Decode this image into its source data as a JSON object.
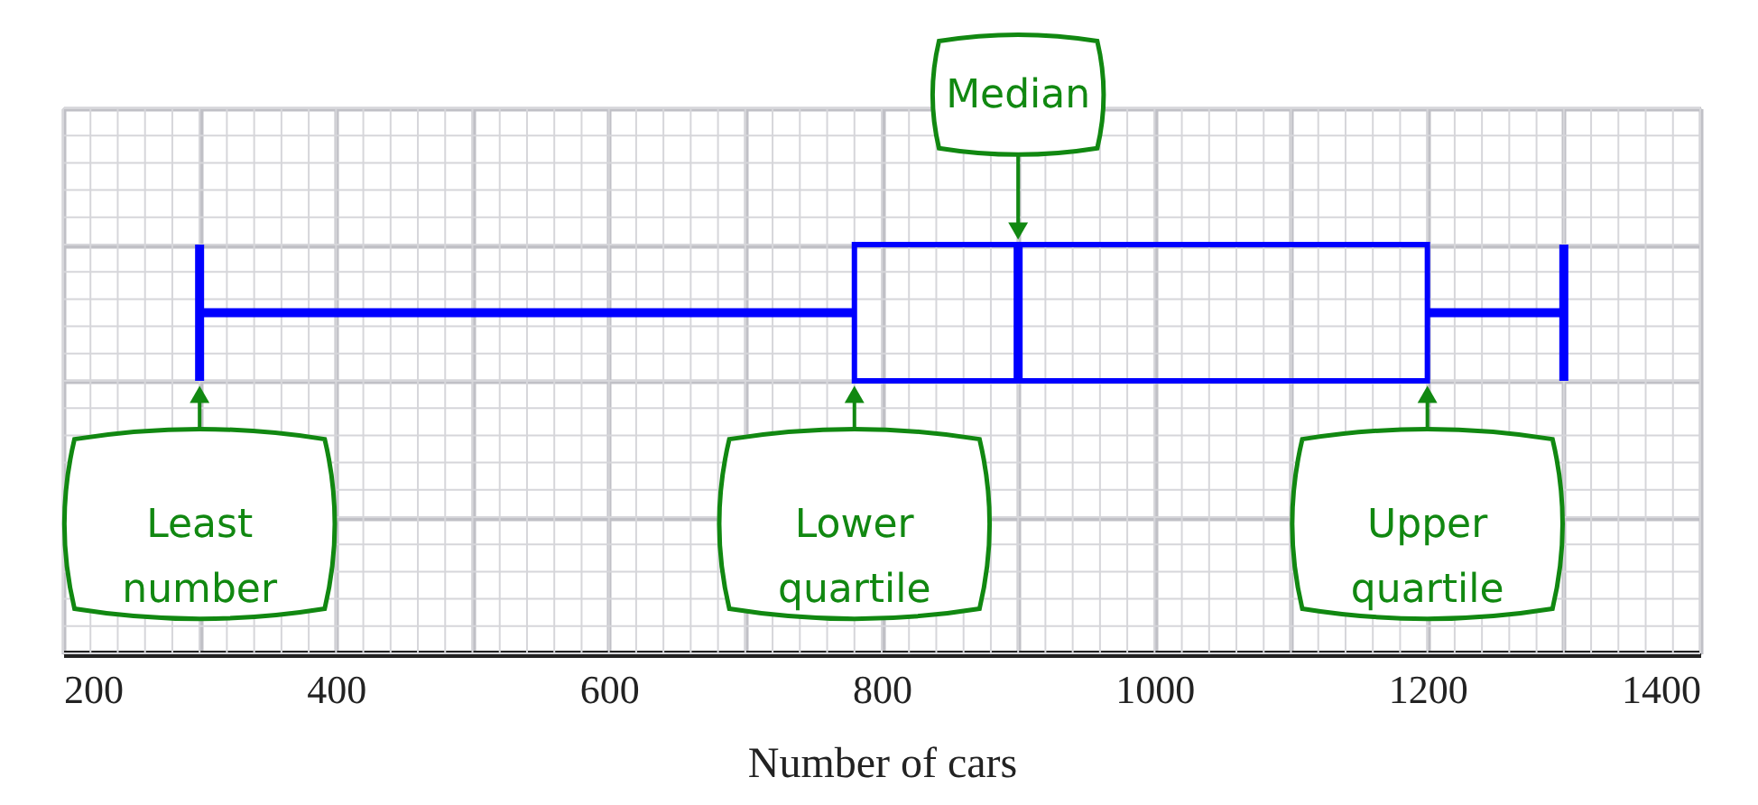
{
  "chart_data": {
    "type": "box",
    "xlabel": "Number of cars",
    "categories": [
      null
    ],
    "series": [
      {
        "color": "#0000ff",
        "boxes": [
          {
            "low": 300,
            "q1": 780,
            "median": 900,
            "q3": 1200,
            "high": 1300
          }
        ]
      }
    ],
    "orientation": "horizontal",
    "xlim": [
      200,
      1400
    ],
    "xticks": [
      200,
      {
        "value": 300,
        "label": null
      },
      400,
      {
        "value": 500,
        "label": null
      },
      600,
      {
        "value": 700,
        "label": null
      },
      800,
      {
        "value": 900,
        "label": null
      },
      1000,
      {
        "value": 1100,
        "label": null
      },
      1200,
      {
        "value": 1300,
        "label": null
      },
      1400
    ],
    "grid": true,
    "tick_labels": "x",
    "annotations": [
      "Median",
      "Least number",
      "Lower quartile",
      "Upper quartile"
    ]
  }
}
